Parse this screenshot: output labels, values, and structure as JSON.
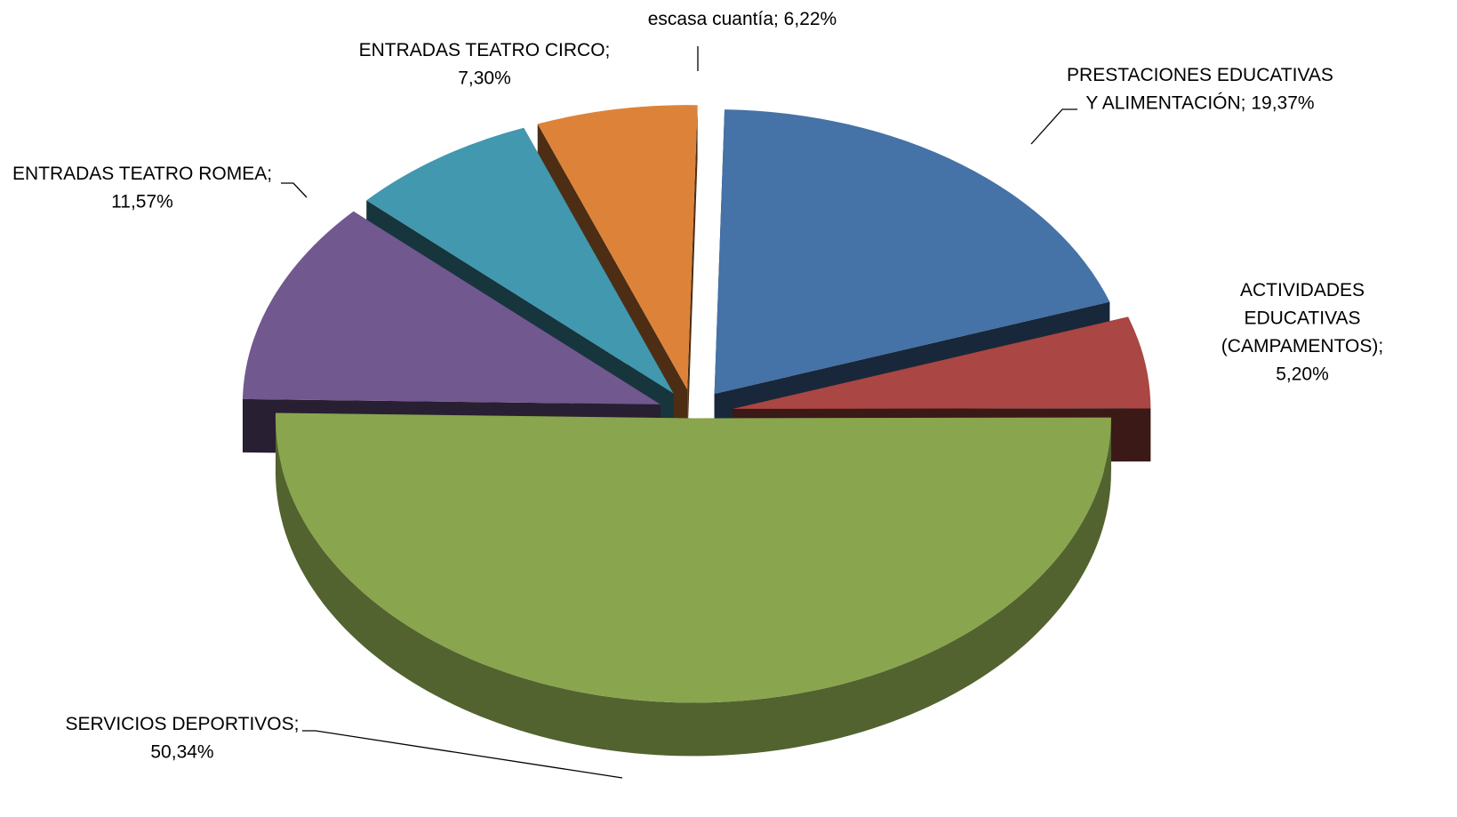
{
  "chart_data": {
    "type": "pie3d",
    "values": [
      6.22,
      19.37,
      5.2,
      50.34,
      11.57,
      7.3
    ],
    "value_labels": [
      "escasa cuantía; 6,22%",
      "PRESTACIONES EDUCATIVAS\nY ALIMENTACIÓN; 19,37%",
      "ACTIVIDADES\nEDUCATIVAS\n(CAMPAMENTOS);\n5,20%",
      "SERVICIOS DEPORTIVOS;\n50,34%",
      "ENTRADAS TEATRO ROMEA;\n11,57%",
      "ENTRADAS TEATRO CIRCO;\n7,30%"
    ],
    "colors": [
      "#dd8339",
      "#4572a7",
      "#aa4643",
      "#89a54e",
      "#71588f",
      "#4198af"
    ]
  }
}
